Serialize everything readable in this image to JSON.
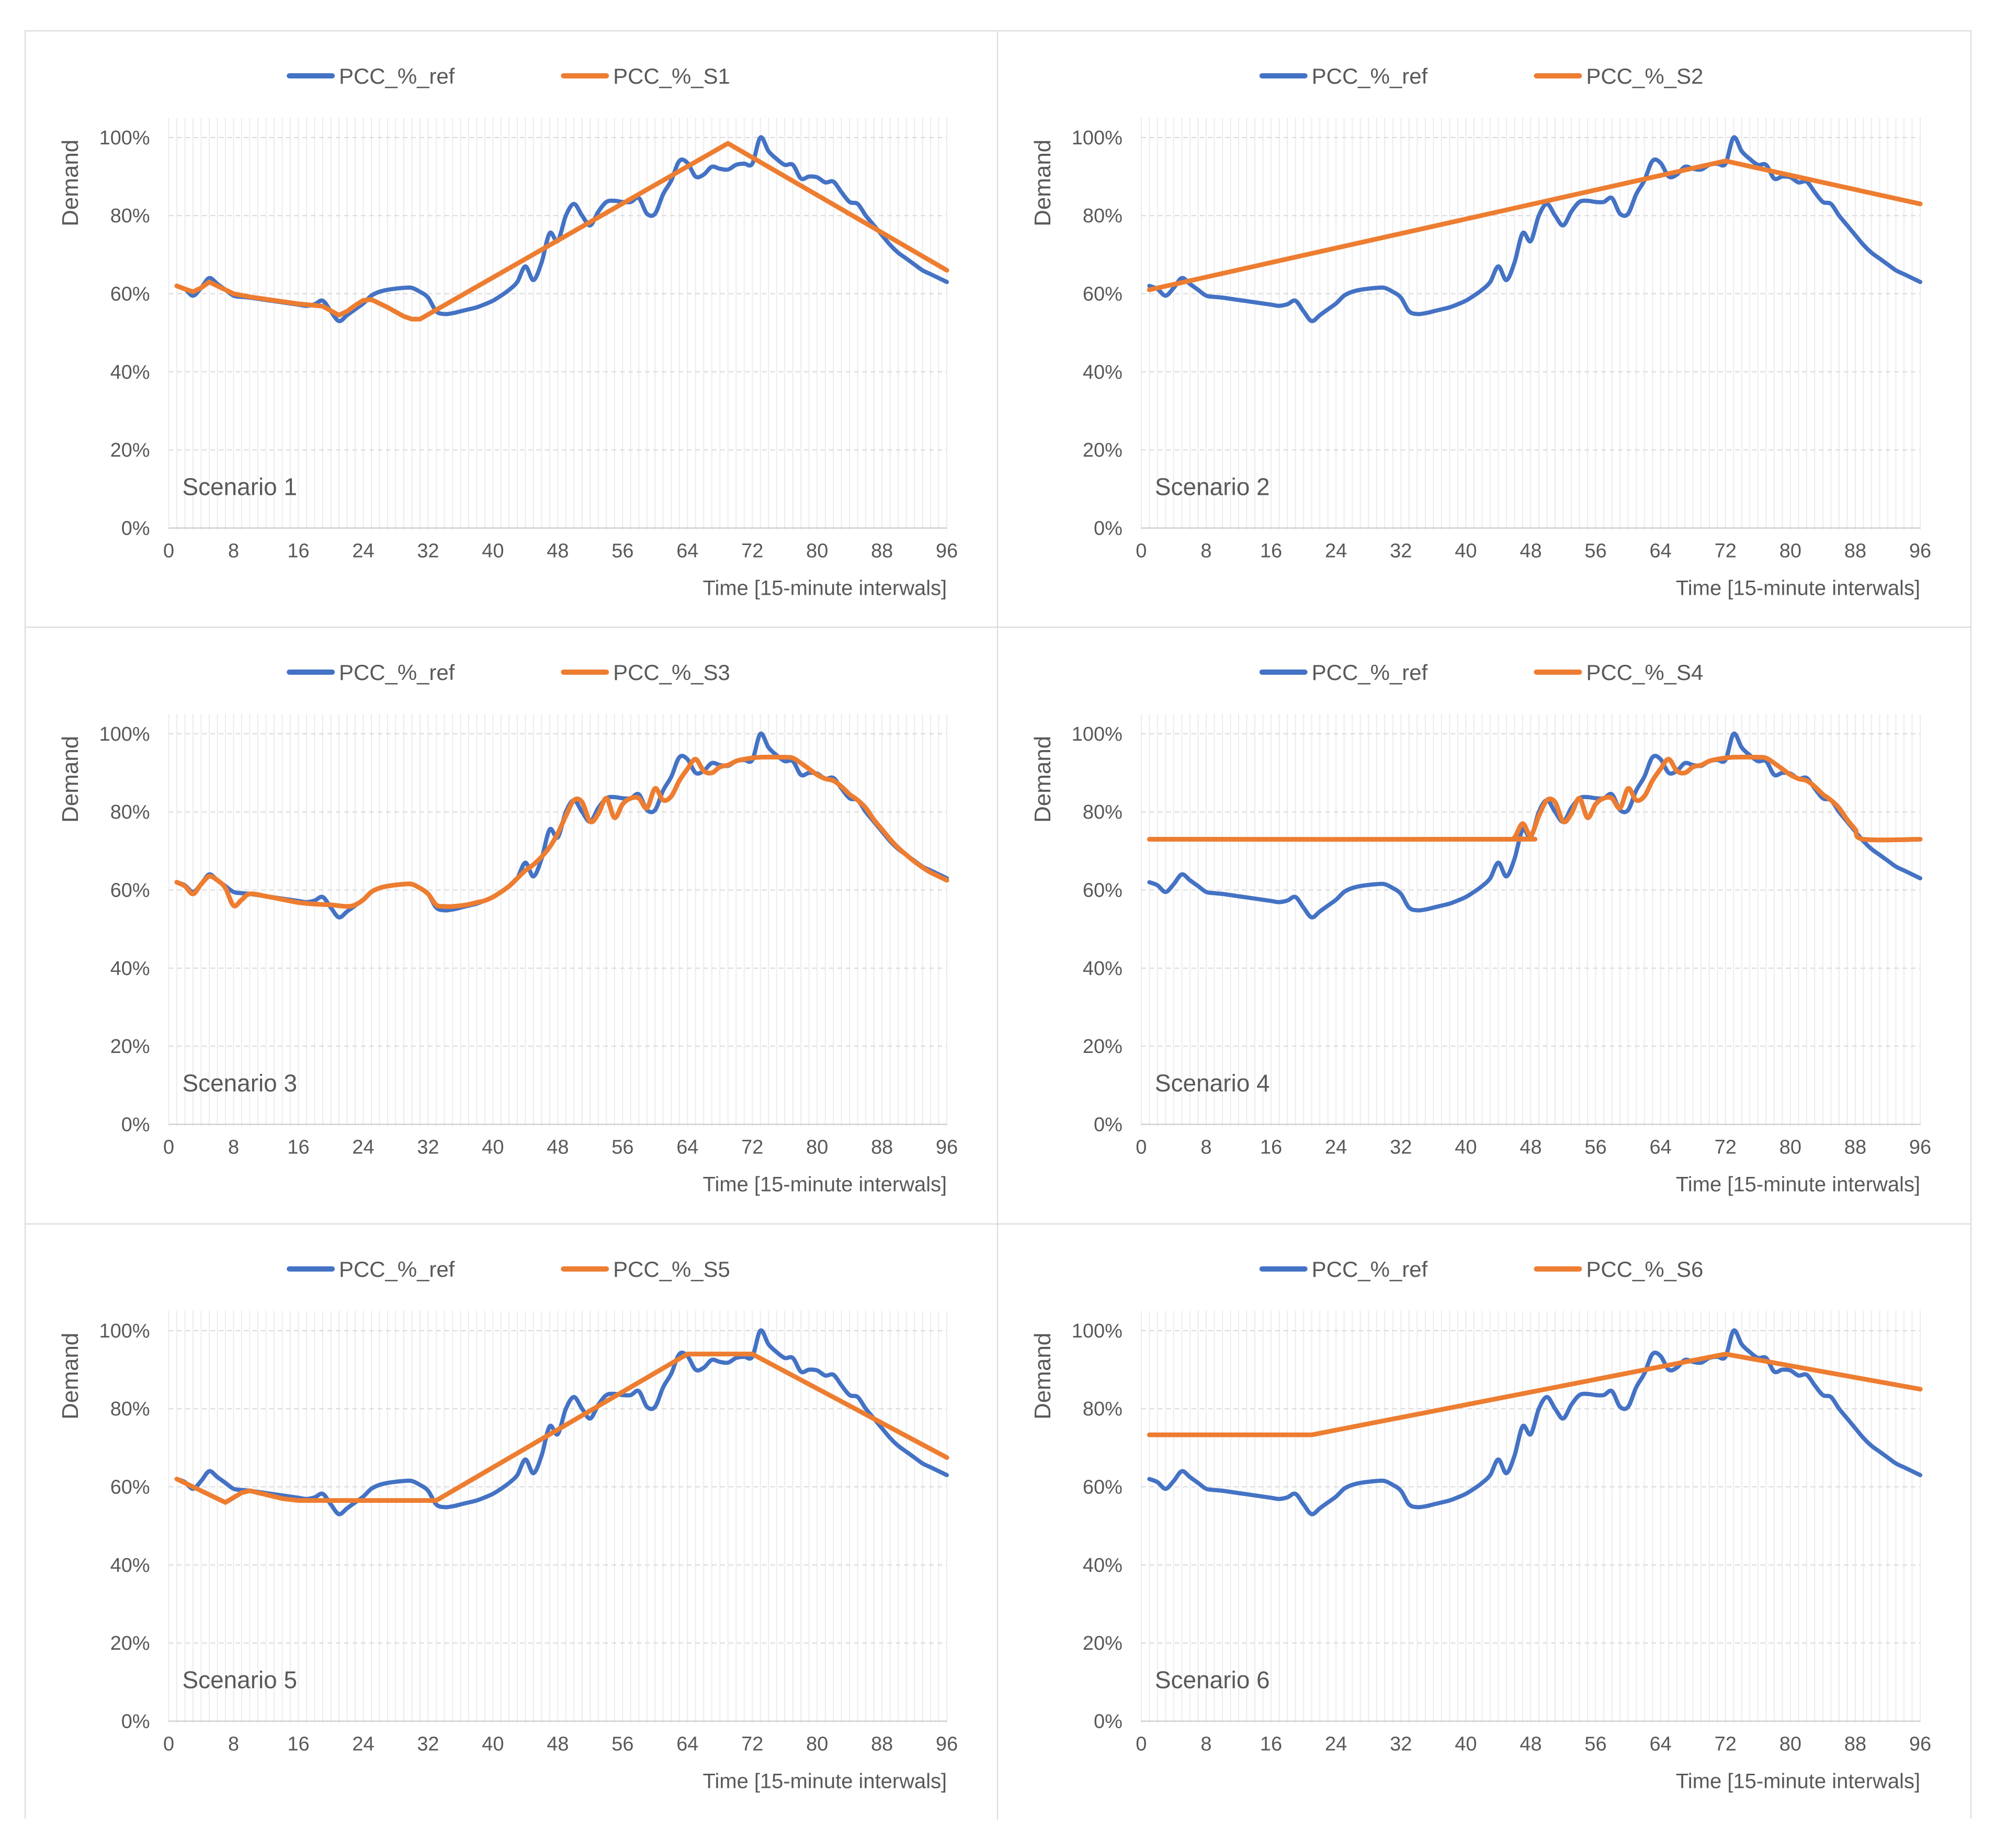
{
  "figure": {
    "background": "#ffffff",
    "border_color": "#d9d9d9",
    "grid_rows": 3,
    "grid_cols": 2
  },
  "colors": {
    "ref_line": "#4472C4",
    "scenario_line": "#ED7D31",
    "text": "#595959",
    "major_gridline": "#d9d9d9",
    "minor_gridline": "#ececec",
    "axis_line": "#c6c6c6"
  },
  "chart_data": {
    "type": "line",
    "x_label": "Time [15-minute interwals]",
    "y_label": "Demand",
    "x_ticks": [
      "0",
      "8",
      "16",
      "24",
      "32",
      "40",
      "48",
      "56",
      "64",
      "72",
      "80",
      "88",
      "96"
    ],
    "x_tick_values": [
      0,
      8,
      16,
      24,
      32,
      40,
      48,
      56,
      64,
      72,
      80,
      88,
      96
    ],
    "y_tick_labels": [
      "0%",
      "20%",
      "40%",
      "60%",
      "80%",
      "100%"
    ],
    "y_tick_values": [
      0,
      20,
      40,
      60,
      80,
      100
    ],
    "x_range": [
      0,
      96
    ],
    "y_range_pct": [
      0,
      105
    ],
    "legend_position": "top",
    "grid": {
      "minor_vertical_every_x": 1,
      "major_horizontal_every_pct": 20
    },
    "ref_series": {
      "name": "PCC_%_ref",
      "color": "#4472C4",
      "x_start": 1,
      "values": [
        62,
        61.2,
        59.5,
        61.5,
        64,
        62.5,
        61,
        59.5,
        59.2,
        59,
        58.7,
        58.4,
        58.1,
        57.8,
        57.5,
        57.2,
        56.9,
        57.3,
        58.2,
        55.5,
        53,
        54.5,
        56,
        57.5,
        59.5,
        60.5,
        61,
        61.3,
        61.5,
        61.5,
        60.5,
        59,
        55.5,
        54.8,
        55,
        55.5,
        56,
        56.5,
        57.3,
        58.2,
        59.5,
        61,
        63,
        67,
        63.5,
        68,
        75.5,
        73.5,
        80,
        83,
        80,
        77.5,
        81,
        83.5,
        83.8,
        83.5,
        83.5,
        84.5,
        80.5,
        80.5,
        85.5,
        89,
        94,
        93.5,
        90,
        90.5,
        92.5,
        92,
        91.8,
        93,
        93.3,
        93.3,
        100,
        96.5,
        94.5,
        93,
        93,
        89.5,
        90,
        89.8,
        88.5,
        88.7,
        86,
        83.5,
        83,
        80,
        77.5,
        75,
        72.5,
        70.5,
        69,
        67.5,
        66,
        65,
        64,
        63
      ]
    },
    "charts": [
      {
        "label": "Scenario 1",
        "series": {
          "name": "PCC_%_S1",
          "color": "#ED7D31",
          "smooth": false,
          "points": [
            [
              1,
              62
            ],
            [
              2,
              61.2
            ],
            [
              3,
              60.5
            ],
            [
              4,
              61.5
            ],
            [
              5,
              63
            ],
            [
              6,
              62
            ],
            [
              7,
              61
            ],
            [
              8,
              60
            ],
            [
              10,
              59.2
            ],
            [
              12,
              58.6
            ],
            [
              14,
              58
            ],
            [
              16,
              57.4
            ],
            [
              18,
              57
            ],
            [
              19,
              56.8
            ],
            [
              21,
              54.5
            ],
            [
              22,
              55.5
            ],
            [
              23,
              57
            ],
            [
              24,
              58.3
            ],
            [
              25,
              58.5
            ],
            [
              27,
              56.5
            ],
            [
              29,
              54.2
            ],
            [
              30,
              53.5
            ],
            [
              31,
              53.5
            ],
            [
              69,
              98.5
            ],
            [
              96,
              66
            ]
          ]
        }
      },
      {
        "label": "Scenario 2",
        "series": {
          "name": "PCC_%_S2",
          "color": "#ED7D31",
          "smooth": false,
          "points": [
            [
              1,
              61
            ],
            [
              72,
              94
            ],
            [
              96,
              83
            ]
          ]
        }
      },
      {
        "label": "Scenario 3",
        "series": {
          "name": "PCC_%_S3",
          "color": "#ED7D31",
          "smooth": true,
          "points": [
            [
              1,
              62
            ],
            [
              2,
              61
            ],
            [
              3,
              59
            ],
            [
              4,
              61.5
            ],
            [
              5,
              63.5
            ],
            [
              6,
              62.5
            ],
            [
              7,
              60.5
            ],
            [
              8,
              56
            ],
            [
              9,
              57.5
            ],
            [
              10,
              59
            ],
            [
              12,
              58.4
            ],
            [
              14,
              57.6
            ],
            [
              16,
              56.8
            ],
            [
              18,
              56.4
            ],
            [
              20,
              56.2
            ],
            [
              22,
              55.8
            ],
            [
              23,
              56.2
            ],
            [
              24,
              57.5
            ],
            [
              25,
              59.5
            ],
            [
              26,
              60.5
            ],
            [
              27,
              61
            ],
            [
              29,
              61.5
            ],
            [
              30,
              61.5
            ],
            [
              31,
              60.5
            ],
            [
              32,
              59
            ],
            [
              33,
              56.2
            ],
            [
              34,
              55.8
            ],
            [
              35,
              55.8
            ],
            [
              36,
              56
            ],
            [
              37,
              56.3
            ],
            [
              38,
              56.8
            ],
            [
              39,
              57.3
            ],
            [
              40,
              58.2
            ],
            [
              41,
              59.5
            ],
            [
              42,
              61
            ],
            [
              43,
              63
            ],
            [
              44,
              65
            ],
            [
              45,
              66.5
            ],
            [
              46,
              68.5
            ],
            [
              47,
              71
            ],
            [
              48,
              74.5
            ],
            [
              49,
              79
            ],
            [
              50,
              83
            ],
            [
              51,
              82.5
            ],
            [
              52,
              77.5
            ],
            [
              53,
              79.5
            ],
            [
              54,
              83.5
            ],
            [
              55,
              78.5
            ],
            [
              56,
              82
            ],
            [
              57,
              83.5
            ],
            [
              58,
              83.5
            ],
            [
              59,
              81
            ],
            [
              60,
              86
            ],
            [
              61,
              83
            ],
            [
              62,
              84
            ],
            [
              63,
              88
            ],
            [
              64,
              91
            ],
            [
              65,
              93.5
            ],
            [
              66,
              90.5
            ],
            [
              67,
              90
            ],
            [
              68,
              91.5
            ],
            [
              69,
              92
            ],
            [
              70,
              93
            ],
            [
              71,
              93.5
            ],
            [
              73,
              94
            ],
            [
              76,
              94
            ],
            [
              77,
              93.8
            ],
            [
              78,
              92.5
            ],
            [
              79,
              91
            ],
            [
              80,
              89.5
            ],
            [
              81,
              88.5
            ],
            [
              82,
              88
            ],
            [
              83,
              86.5
            ],
            [
              84,
              84.5
            ],
            [
              85,
              83
            ],
            [
              86,
              81
            ],
            [
              87,
              78
            ],
            [
              88,
              75.5
            ],
            [
              89,
              73
            ],
            [
              90,
              70.8
            ],
            [
              91,
              69
            ],
            [
              92,
              67.3
            ],
            [
              93,
              65.8
            ],
            [
              94,
              64.5
            ],
            [
              95,
              63.5
            ],
            [
              96,
              62.5
            ]
          ]
        }
      },
      {
        "label": "Scenario 4",
        "series": {
          "name": "PCC_%_S4",
          "color": "#ED7D31",
          "smooth": true,
          "points": [
            [
              1,
              73
            ],
            [
              45,
              73
            ],
            [
              46,
              73.5
            ],
            [
              47,
              77
            ],
            [
              48,
              74
            ],
            [
              49,
              79
            ],
            [
              50,
              83
            ],
            [
              51,
              82.5
            ],
            [
              52,
              77.5
            ],
            [
              53,
              79.5
            ],
            [
              54,
              83.5
            ],
            [
              55,
              78.5
            ],
            [
              56,
              82
            ],
            [
              57,
              83.5
            ],
            [
              58,
              83.5
            ],
            [
              59,
              81
            ],
            [
              60,
              86
            ],
            [
              61,
              83
            ],
            [
              62,
              84
            ],
            [
              63,
              88
            ],
            [
              64,
              91
            ],
            [
              65,
              93.5
            ],
            [
              66,
              90.5
            ],
            [
              67,
              90
            ],
            [
              68,
              91.5
            ],
            [
              69,
              92
            ],
            [
              70,
              93
            ],
            [
              71,
              93.5
            ],
            [
              73,
              94
            ],
            [
              76,
              94
            ],
            [
              77,
              93.8
            ],
            [
              78,
              92.5
            ],
            [
              79,
              91
            ],
            [
              80,
              89.5
            ],
            [
              81,
              88.5
            ],
            [
              82,
              88
            ],
            [
              83,
              86.5
            ],
            [
              84,
              84.5
            ],
            [
              85,
              83
            ],
            [
              86,
              81
            ],
            [
              87,
              78
            ],
            [
              88,
              75.5
            ],
            [
              89,
              73
            ],
            [
              96,
              73
            ]
          ]
        }
      },
      {
        "label": "Scenario 5",
        "series": {
          "name": "PCC_%_S5",
          "color": "#ED7D31",
          "smooth": false,
          "points": [
            [
              1,
              62
            ],
            [
              7,
              56
            ],
            [
              9,
              58.5
            ],
            [
              10,
              59
            ],
            [
              12,
              58
            ],
            [
              14,
              57
            ],
            [
              16,
              56.5
            ],
            [
              33,
              56.5
            ],
            [
              64,
              94
            ],
            [
              72,
              94
            ],
            [
              96,
              67.5
            ]
          ]
        }
      },
      {
        "label": "Scenario 6",
        "series": {
          "name": "PCC_%_S6",
          "color": "#ED7D31",
          "smooth": false,
          "points": [
            [
              1,
              73.3
            ],
            [
              21,
              73.3
            ],
            [
              72,
              94
            ],
            [
              96,
              85
            ]
          ]
        }
      }
    ]
  }
}
